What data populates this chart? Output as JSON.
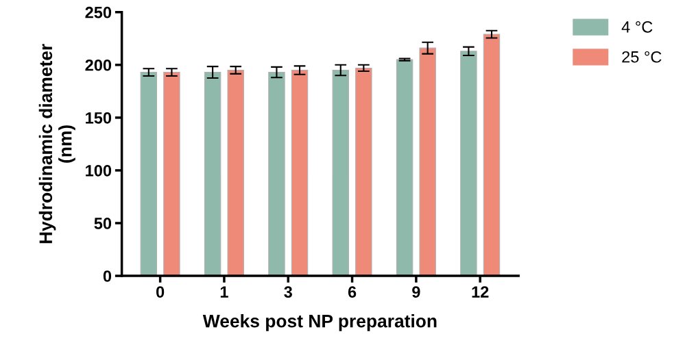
{
  "chart_data": {
    "type": "bar",
    "xlabel": "Weeks post NP preparation",
    "ylabel": "Hydrodinamic diameter\n(nm)",
    "categories": [
      "0",
      "1",
      "3",
      "6",
      "9",
      "12"
    ],
    "series": [
      {
        "name": "4 °C",
        "color": "#8fb9aa",
        "values": [
          193,
          193,
          193,
          195,
          205,
          213
        ],
        "errors": [
          3.5,
          5.5,
          5,
          5,
          1,
          4
        ]
      },
      {
        "name": "25 °C",
        "color": "#f08a78",
        "values": [
          193,
          195,
          195,
          197,
          216,
          229
        ],
        "errors": [
          3.5,
          3.5,
          4,
          3,
          5.5,
          3.5
        ]
      }
    ],
    "ylim": [
      0,
      250
    ],
    "yticks": [
      0,
      50,
      100,
      150,
      200,
      250
    ],
    "grid": false,
    "legend": "top right"
  }
}
